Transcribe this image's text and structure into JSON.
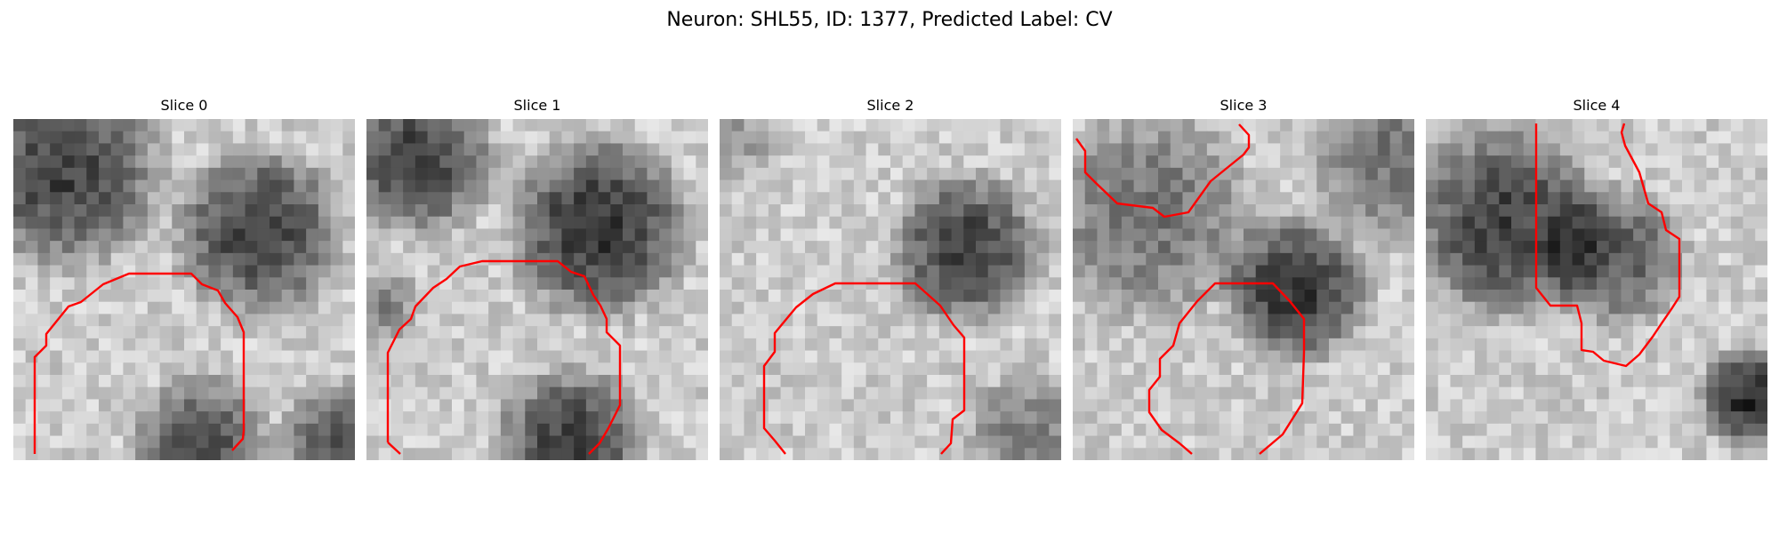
{
  "figure": {
    "title": "Neuron: SHL55, ID: 1377, Predicted Label: CV",
    "contour_color": "#ff0000"
  },
  "slices": [
    {
      "title": "Slice 0"
    },
    {
      "title": "Slice 1"
    },
    {
      "title": "Slice 2"
    },
    {
      "title": "Slice 3"
    },
    {
      "title": "Slice 4"
    }
  ]
}
